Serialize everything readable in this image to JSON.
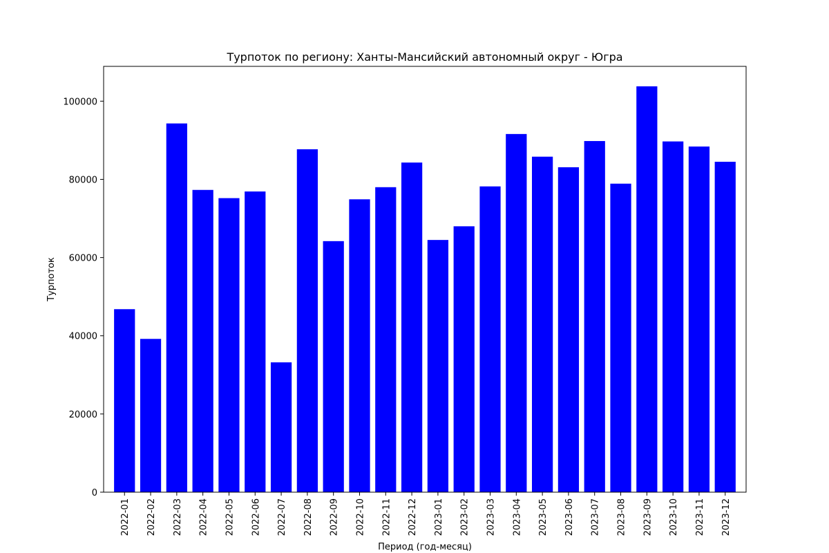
{
  "chart_data": {
    "type": "bar",
    "title": "Турпоток по региону: Ханты-Мансийский автономный округ - Югра",
    "xlabel": "Период (год-месяц)",
    "ylabel": "Турпоток",
    "categories": [
      "2022-01",
      "2022-02",
      "2022-03",
      "2022-04",
      "2022-05",
      "2022-06",
      "2022-07",
      "2022-08",
      "2022-09",
      "2022-10",
      "2022-11",
      "2022-12",
      "2023-01",
      "2023-02",
      "2023-03",
      "2023-04",
      "2023-05",
      "2023-06",
      "2023-07",
      "2023-08",
      "2023-09",
      "2023-10",
      "2023-11",
      "2023-12"
    ],
    "values": [
      46800,
      39200,
      94300,
      77300,
      75200,
      76900,
      33200,
      87700,
      64200,
      74900,
      78000,
      84300,
      64500,
      68000,
      78200,
      91600,
      85800,
      83100,
      89800,
      78900,
      103800,
      89700,
      88400,
      84500
    ],
    "ylim": [
      0,
      108900
    ],
    "yticks": [
      0,
      20000,
      40000,
      60000,
      80000,
      100000
    ],
    "bar_color": "#0000ff",
    "grid": false,
    "legend": "none"
  }
}
